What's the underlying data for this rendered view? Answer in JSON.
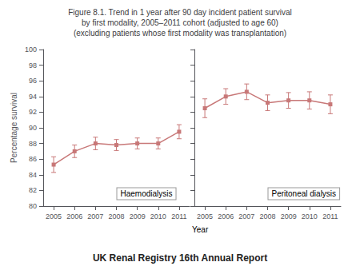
{
  "chart_data": [
    {
      "type": "line",
      "title": "Figure 8.1. Trend in 1 year after 90 day incident patient survival\nby first modality, 2005–2011 cohort (adjusted to age 60)\n(excluding patients whose first modality was transplantation)",
      "footer": "UK Renal Registry 16th Annual Report",
      "annotation": "Haemodialysis",
      "ylabel": "Percentage survival",
      "xlabel": "Year",
      "x": [
        2005,
        2006,
        2007,
        2008,
        2009,
        2010,
        2011
      ],
      "values": [
        85.3,
        87.0,
        88.0,
        87.8,
        88.0,
        88.0,
        89.5
      ],
      "errors": [
        1.0,
        0.8,
        0.8,
        0.7,
        0.7,
        0.7,
        0.9
      ],
      "xlim": [
        2004.5,
        2011.5
      ],
      "xticks": [
        2005,
        2006,
        2007,
        2008,
        2009,
        2010,
        2011
      ],
      "ylim": [
        80,
        100
      ],
      "yticks": [
        80,
        82,
        84,
        86,
        88,
        90,
        92,
        94,
        96,
        98,
        100
      ],
      "color": "#c87878",
      "marker": "square",
      "grid": false
    },
    {
      "type": "line",
      "annotation": "Peritoneal dialysis",
      "x": [
        2005,
        2006,
        2007,
        2008,
        2009,
        2010,
        2011
      ],
      "values": [
        92.5,
        94.0,
        94.6,
        93.2,
        93.5,
        93.5,
        93.0
      ],
      "errors": [
        1.2,
        1.0,
        1.0,
        1.0,
        1.0,
        1.1,
        1.2
      ],
      "xlim": [
        2004.5,
        2011.5
      ],
      "xticks": [
        2005,
        2006,
        2007,
        2008,
        2009,
        2010,
        2011
      ],
      "ylim": [
        80,
        100
      ],
      "yticks": [
        80,
        82,
        84,
        86,
        88,
        90,
        92,
        94,
        96,
        98,
        100
      ],
      "color": "#c87878",
      "marker": "square",
      "grid": false,
      "tick_labels": "x"
    }
  ]
}
